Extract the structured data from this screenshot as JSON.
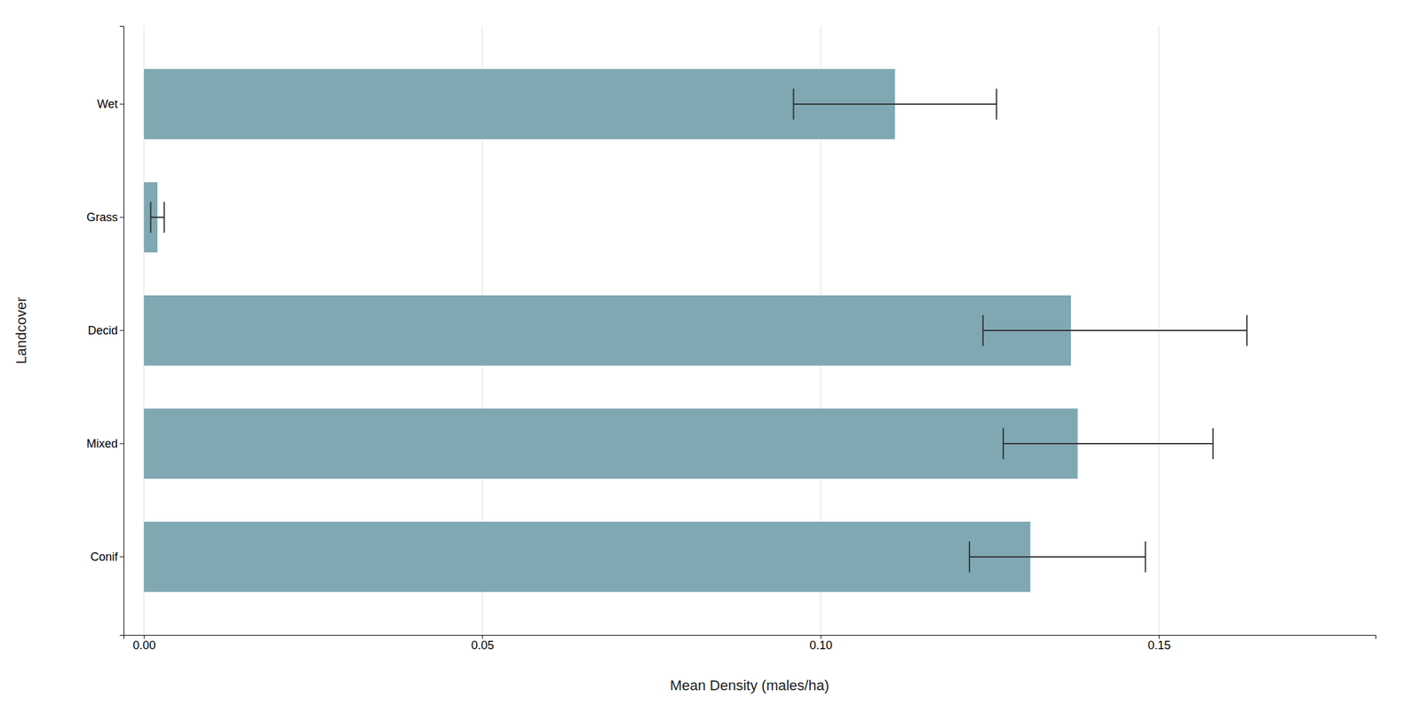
{
  "chart_data": {
    "type": "bar",
    "orientation": "horizontal",
    "categories": [
      "Wet",
      "Grass",
      "Decid",
      "Mixed",
      "Conif"
    ],
    "values": [
      0.111,
      0.002,
      0.137,
      0.138,
      0.131
    ],
    "ci_lower": [
      0.096,
      0.001,
      0.124,
      0.127,
      0.122
    ],
    "ci_upper": [
      0.126,
      0.003,
      0.163,
      0.158,
      0.148
    ],
    "color": "#7fa8b3",
    "xlabel": "Mean Density (males/ha)",
    "ylabel": "Landcover",
    "xlim": [
      -0.003,
      0.182
    ],
    "xticks": [
      {
        "value": 0.0,
        "label": "0.00"
      },
      {
        "value": 0.05,
        "label": "0.05"
      },
      {
        "value": 0.1,
        "label": "0.10"
      },
      {
        "value": 0.15,
        "label": "0.15"
      }
    ],
    "grid": true
  }
}
